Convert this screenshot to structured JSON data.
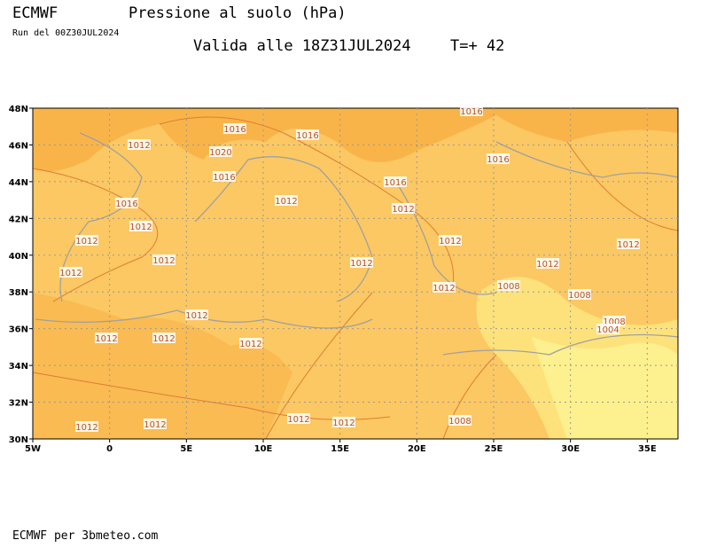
{
  "header": {
    "model": "ECMWF",
    "field": "Pressione al suolo (hPa)",
    "run": "Run del 00Z30JUL2024",
    "valid": "Valida alle 18Z31JUL2024",
    "lead": "T=+ 42"
  },
  "map": {
    "lat_labels": [
      "48N",
      "46N",
      "44N",
      "42N",
      "40N",
      "38N",
      "36N",
      "34N",
      "32N",
      "30N"
    ],
    "lon_labels": [
      "5W",
      "0",
      "5E",
      "10E",
      "15E",
      "20E",
      "25E",
      "30E",
      "35E"
    ],
    "isobar_labels": [
      "1016",
      "1016",
      "1016",
      "1012",
      "1020",
      "1016",
      "1016",
      "1016",
      "1012",
      "1016",
      "1012",
      "1012",
      "1012",
      "1012",
      "1012",
      "1012",
      "1012",
      "1012",
      "1012",
      "1008",
      "1012",
      "1008",
      "1012",
      "1008",
      "1004",
      "1012",
      "1012",
      "1012",
      "1012",
      "1012",
      "1008",
      "1012",
      "1012"
    ]
  },
  "footer": "ECMWF per 3bmeteo.com"
}
